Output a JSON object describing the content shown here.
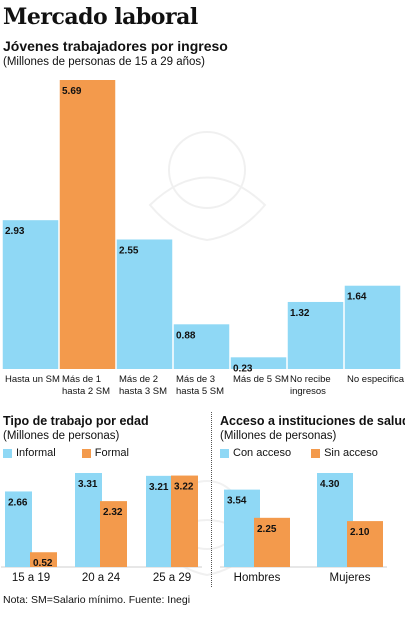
{
  "title": "Mercado laboral",
  "footnote": "Nota: SM=Salario mínimo. Fuente: Inegi",
  "colors": {
    "blue": "#8fd8f5",
    "orange": "#f39a4c"
  },
  "chart_data": [
    {
      "type": "bar",
      "title": "Jóvenes trabajadores por ingreso",
      "subtitle": "(Millones de personas de 15 a 29 años)",
      "categories": [
        [
          "Hasta un SM"
        ],
        [
          "Más de 1",
          "hasta 2 SM"
        ],
        [
          "Más de 2",
          "hasta 3 SM"
        ],
        [
          "Más de 3",
          "hasta 5 SM"
        ],
        [
          "Más de 5 SM"
        ],
        [
          "No recibe",
          "ingresos"
        ],
        [
          "No especifica"
        ]
      ],
      "values": [
        2.93,
        5.69,
        2.55,
        0.88,
        0.23,
        1.32,
        1.64
      ],
      "value_labels": [
        "2.93",
        "5.69",
        "2.55",
        "0.88",
        "0.23",
        "1.32",
        "1.64"
      ],
      "highlight_index": 1,
      "ylim": [
        0,
        5.69
      ]
    },
    {
      "type": "bar",
      "title": "Tipo de trabajo por edad",
      "subtitle": "(Millones de personas)",
      "categories": [
        "15 a 19",
        "20 a 24",
        "25 a 29"
      ],
      "series": [
        {
          "name": "Informal",
          "values": [
            2.66,
            3.31,
            3.21
          ],
          "labels": [
            "2.66",
            "3.31",
            "3.21"
          ]
        },
        {
          "name": "Formal",
          "values": [
            0.52,
            2.32,
            3.22
          ],
          "labels": [
            "0.52",
            "2.32",
            "3.22"
          ]
        }
      ],
      "ylim": [
        0,
        3.31
      ]
    },
    {
      "type": "bar",
      "title": "Acceso a instituciones de salud",
      "subtitle": "(Millones de personas)",
      "categories": [
        "Hombres",
        "Mujeres"
      ],
      "series": [
        {
          "name": "Con acceso",
          "values": [
            3.54,
            4.3
          ],
          "labels": [
            "3.54",
            "4.30"
          ]
        },
        {
          "name": "Sin acceso",
          "values": [
            2.25,
            2.1
          ],
          "labels": [
            "2.25",
            "2.10"
          ]
        }
      ],
      "ylim": [
        0,
        4.3
      ]
    }
  ]
}
